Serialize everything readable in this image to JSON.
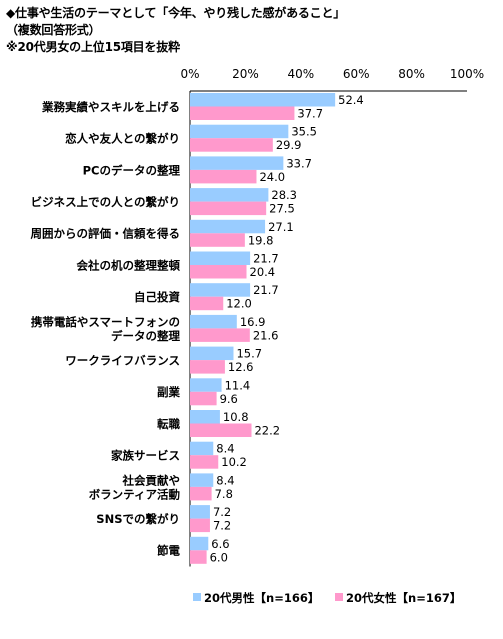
{
  "header": {
    "line1": "◆仕事や生活のテーマとして「今年、やり残した感があること」",
    "line2": "（複数回答形式）",
    "line3": "※20代男女の上位15項目を抜粋"
  },
  "colors": {
    "male": "#99ccff",
    "female": "#ff99cc",
    "grid": "#000000"
  },
  "chart_data": {
    "type": "bar",
    "orientation": "horizontal",
    "categories": [
      [
        "業務実績やスキルを上げる"
      ],
      [
        "恋人や友人との繋がり"
      ],
      [
        "PCのデータの整理"
      ],
      [
        "ビジネス上での人との繋がり"
      ],
      [
        "周囲からの評価・信頼を得る"
      ],
      [
        "会社の机の整理整頓"
      ],
      [
        "自己投資"
      ],
      [
        "携帯電話やスマートフォンの",
        "データの整理"
      ],
      [
        "ワークライフバランス"
      ],
      [
        "副業"
      ],
      [
        "転職"
      ],
      [
        "家族サービス"
      ],
      [
        "社会貢献や",
        "ボランティア活動"
      ],
      [
        "SNSでの繋がり"
      ],
      [
        "節電"
      ]
    ],
    "series": [
      {
        "name": "20代男性【n=166】",
        "color": "#99ccff",
        "values": [
          52.4,
          35.5,
          33.7,
          28.3,
          27.1,
          21.7,
          21.7,
          16.9,
          15.7,
          11.4,
          10.8,
          8.4,
          8.4,
          7.2,
          6.6
        ]
      },
      {
        "name": "20代女性【n=167】",
        "color": "#ff99cc",
        "values": [
          37.7,
          29.9,
          24.0,
          27.5,
          19.8,
          20.4,
          12.0,
          21.6,
          12.6,
          9.6,
          22.2,
          10.2,
          7.8,
          7.2,
          6.0
        ]
      }
    ],
    "xlim": [
      0,
      100
    ],
    "xticks": [
      "0%",
      "20%",
      "40%",
      "60%",
      "80%",
      "100%"
    ],
    "grid": false,
    "legend": "bottom"
  }
}
